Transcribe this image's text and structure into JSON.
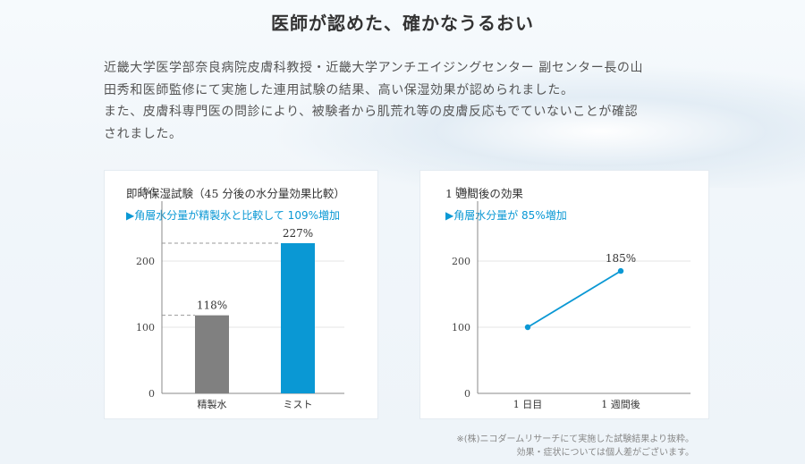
{
  "page": {
    "title": "医師が認めた、確かなうるおい",
    "description_lines": [
      "近畿大学医学部奈良病院皮膚科教授・近畿大学アンチエイジングセンター 副センター長の山",
      "田秀和医師監修にて実施した連用試験の結果、高い保湿効果が認められました。",
      "また、皮膚科専門医の問診により、被験者から肌荒れ等の皮膚反応もでていないことが確認",
      "されました。"
    ],
    "footnote_lines": [
      "※(株)ニコダームリサーチにて実施した試験結果より抜粋。",
      "効果・症状については個人差がございます。"
    ]
  },
  "panels": [
    {
      "title": "即時保湿試験（45 分後の水分量効果比較）",
      "subtitle": "▶角層水分量が精製水と比較して 109%増加"
    },
    {
      "title": "1 週間後の効果",
      "subtitle": "▶角層水分量が 85%増加"
    }
  ],
  "chart_data": [
    {
      "type": "bar",
      "unit_label": "[%]",
      "categories": [
        "精製水",
        "ミスト"
      ],
      "values": [
        118,
        227
      ],
      "value_labels": [
        "118%",
        "227%"
      ],
      "colors": [
        "#808080",
        "#0a98d4"
      ],
      "ylim": [
        0,
        250
      ],
      "yticks": [
        0,
        100,
        200
      ],
      "grid": true,
      "reference_lines": true
    },
    {
      "type": "line",
      "unit_label": "[%]",
      "categories": [
        "1 日目",
        "1 週間後"
      ],
      "values": [
        100,
        185
      ],
      "point_labels": [
        "",
        "185%"
      ],
      "color": "#0a98d4",
      "ylim": [
        0,
        250
      ],
      "yticks": [
        0,
        100,
        200
      ],
      "grid": true
    }
  ]
}
